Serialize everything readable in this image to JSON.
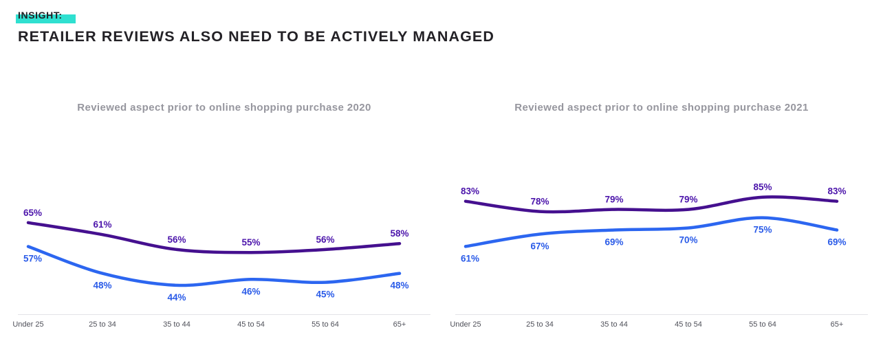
{
  "header": {
    "insight_label": "INSIGHT:",
    "heading": "RETAILER REVIEWS ALSO NEED TO BE ACTIVELY MANAGED"
  },
  "colors": {
    "ink": "#232126",
    "highlight": "#2FE0D0",
    "muted": "#96969E",
    "tick": "#4F5059",
    "axis": "#E3E3E7"
  },
  "chart_data": [
    {
      "type": "line",
      "title": "Reviewed aspect prior to online shopping purchase 2020",
      "categories": [
        "Under 25",
        "25 to 34",
        "35 to 44",
        "45 to 54",
        "55 to 64",
        "65+"
      ],
      "series": [
        {
          "name": "purple",
          "color": "#45108F",
          "label_color": "#4C15AB",
          "label_position": "above",
          "values": [
            65,
            61,
            56,
            55,
            56,
            58
          ]
        },
        {
          "name": "blue",
          "color": "#2C66F0",
          "label_color": "#2A5BE8",
          "label_position": "below",
          "values": [
            57,
            48,
            44,
            46,
            45,
            48
          ]
        }
      ],
      "label_format": "percent",
      "ylim": [
        35,
        88
      ],
      "grid": false,
      "legend": "none"
    },
    {
      "type": "line",
      "title": "Reviewed aspect prior to online shopping purchase 2021",
      "categories": [
        "Under 25",
        "25 to 34",
        "35 to 44",
        "45 to 54",
        "55 to 64",
        "65+"
      ],
      "series": [
        {
          "name": "purple",
          "color": "#45108F",
          "label_color": "#4C15AB",
          "label_position": "above",
          "values": [
            83,
            78,
            79,
            79,
            85,
            83
          ]
        },
        {
          "name": "blue",
          "color": "#2C66F0",
          "label_color": "#2A5BE8",
          "label_position": "below",
          "values": [
            61,
            67,
            69,
            70,
            75,
            69
          ]
        }
      ],
      "label_format": "percent",
      "ylim": [
        29,
        106
      ],
      "grid": false,
      "legend": "none"
    }
  ]
}
